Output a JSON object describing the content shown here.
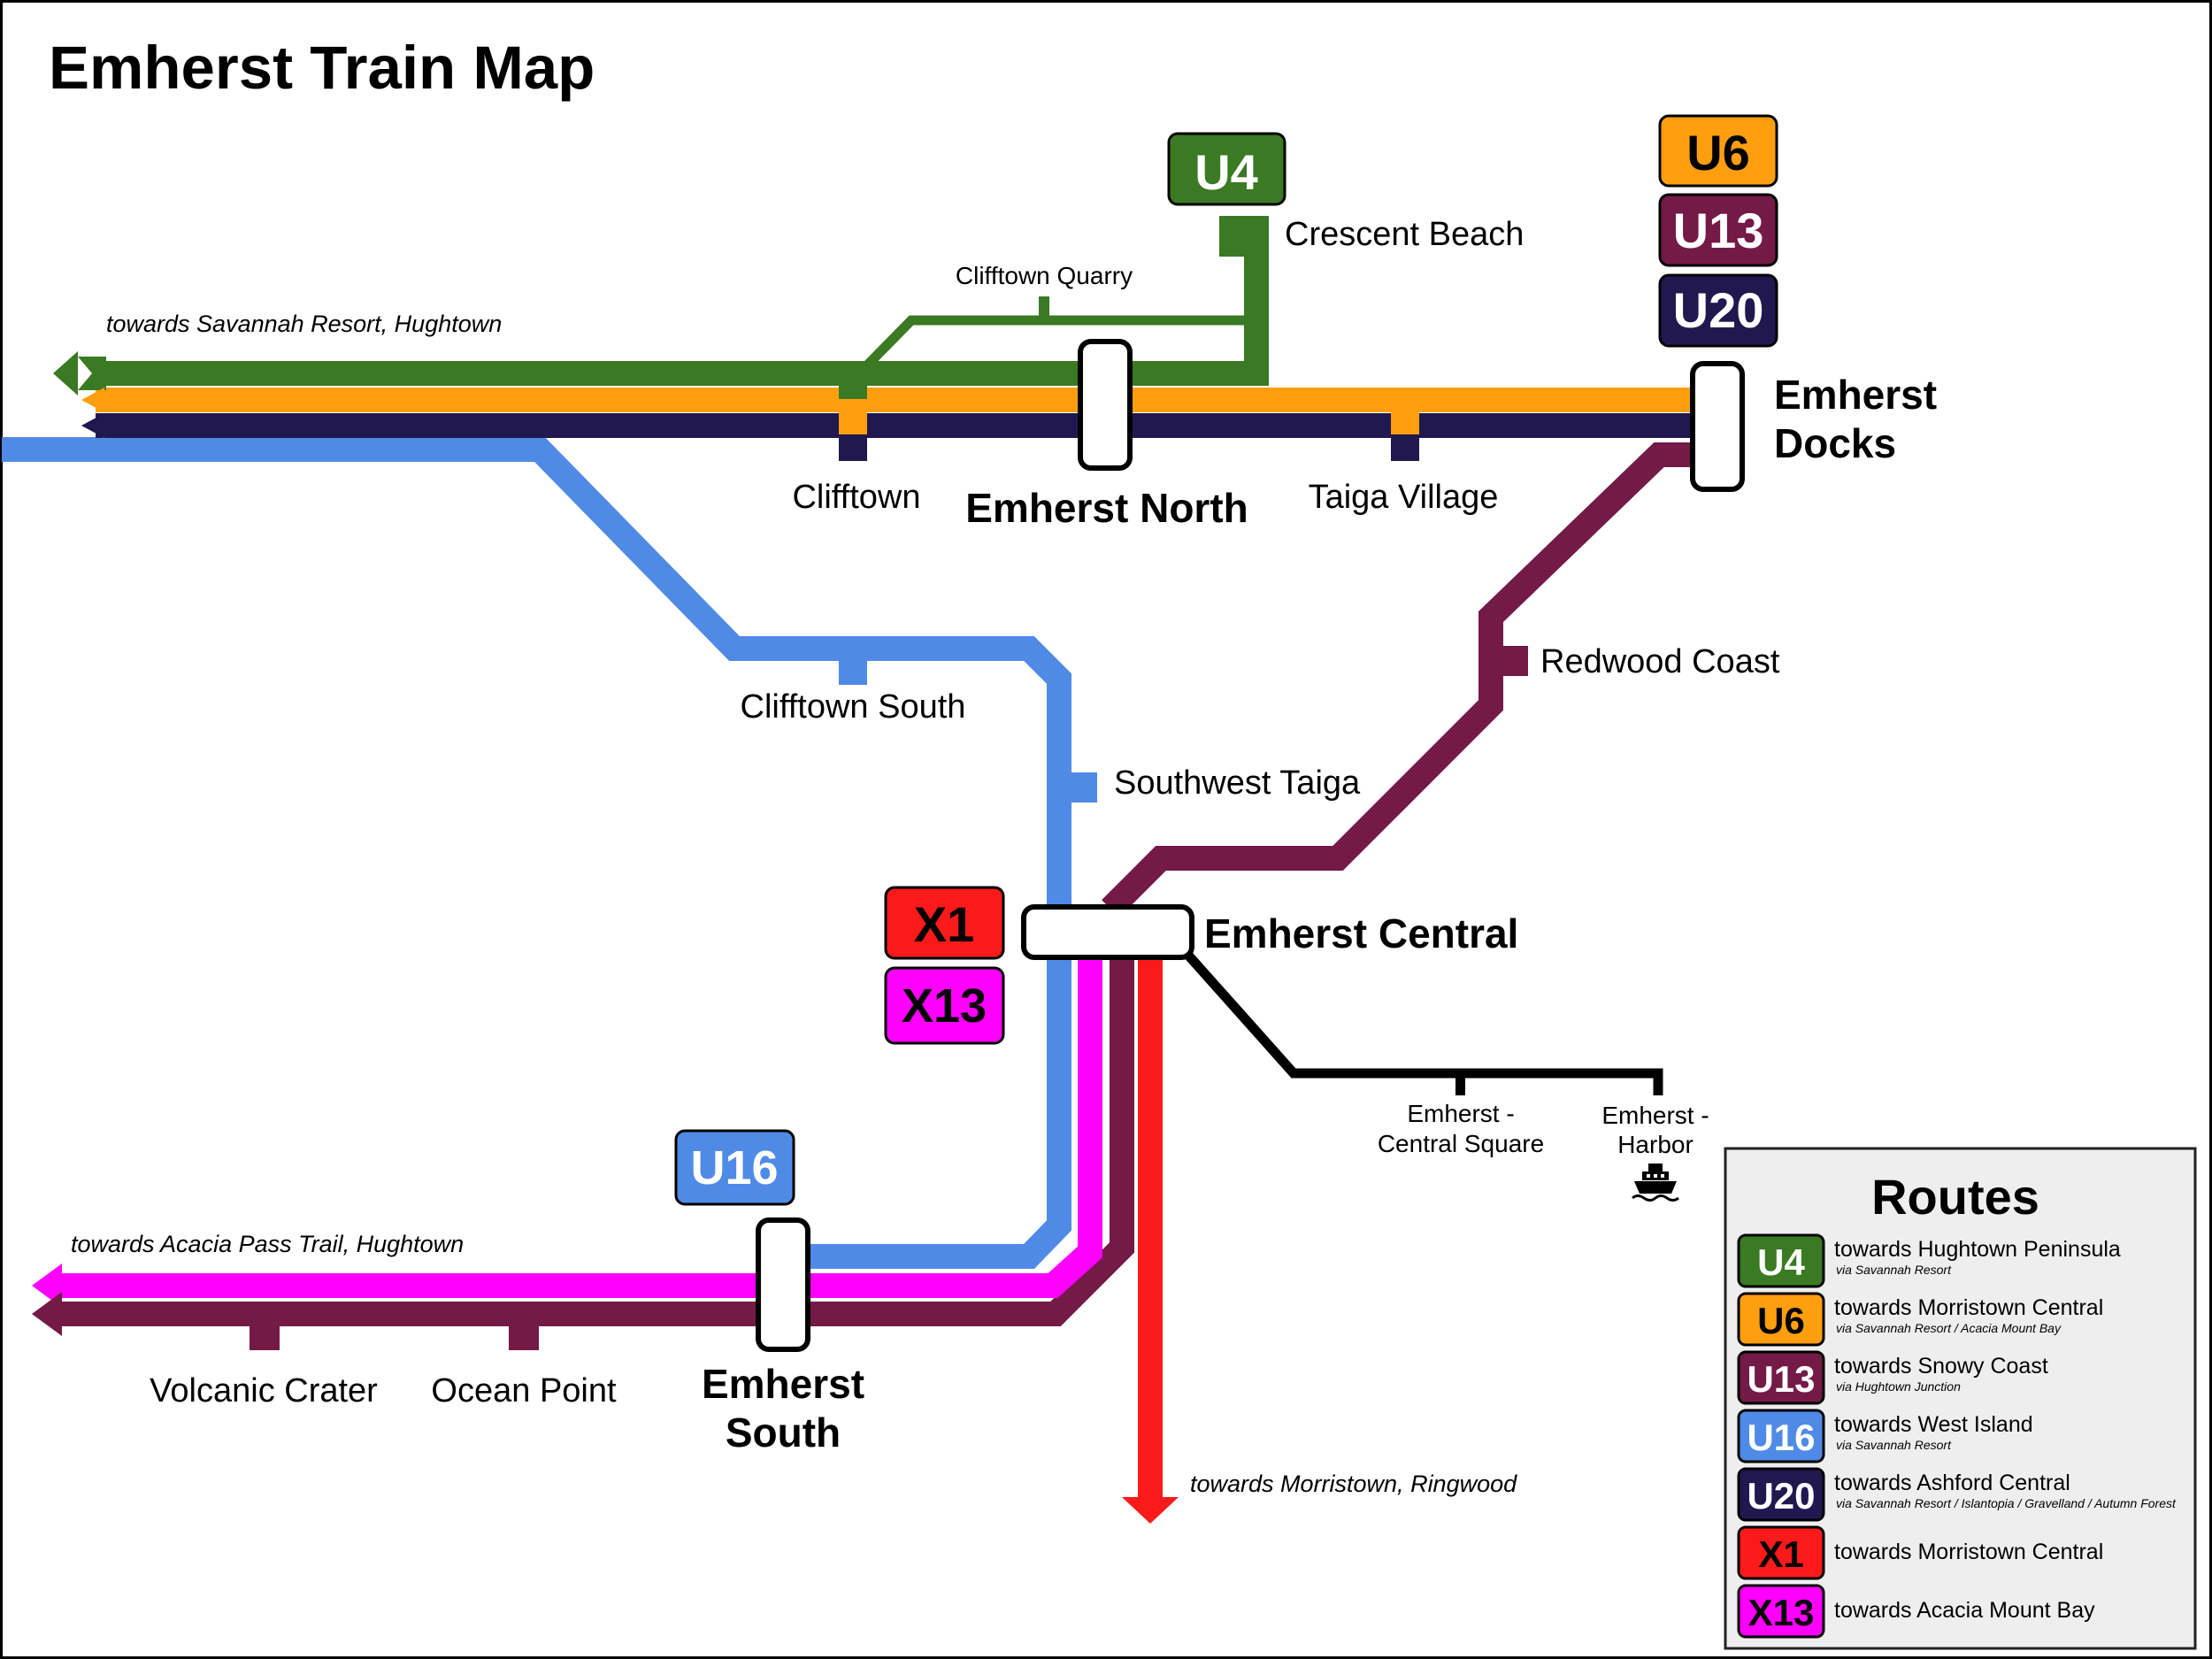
{
  "title": "Emherst Train Map",
  "colors": {
    "U4": "#3a7a22",
    "U6": "#ff9f0f",
    "U13": "#741a47",
    "U16": "#4f8be6",
    "U20": "#221850",
    "X1": "#fa1a1a",
    "X13": "#ff00ff",
    "link": "#000000"
  },
  "stations": {
    "crescent_beach": "Crescent Beach",
    "clifftown_quarry": "Clifftown Quarry",
    "clifftown": "Clifftown",
    "emherst_north": "Emherst North",
    "taiga_village": "Taiga Village",
    "emherst_docks_1": "Emherst",
    "emherst_docks_2": "Docks",
    "redwood_coast": "Redwood Coast",
    "clifftown_south": "Clifftown South",
    "southwest_taiga": "Southwest Taiga",
    "emherst_central": "Emherst Central",
    "central_square_1": "Emherst -",
    "central_square_2": "Central Square",
    "harbor_1": "Emherst -",
    "harbor_2": "Harbor",
    "volcanic_crater": "Volcanic Crater",
    "ocean_point": "Ocean Point",
    "emherst_south_1": "Emherst",
    "emherst_south_2": "South"
  },
  "directions": {
    "northwest": "towards Savannah Resort, Hughtown",
    "southwest": "towards Acacia Pass Trail, Hughtown",
    "south": "towards Morristown, Ringwood"
  },
  "badges": {
    "U4": "U4",
    "U6": "U6",
    "U13": "U13",
    "U20": "U20",
    "X1": "X1",
    "X13": "X13",
    "U16": "U16"
  },
  "icons": {
    "harbor": "ferry-icon"
  },
  "legend": {
    "title": "Routes",
    "routes": [
      {
        "id": "U4",
        "dest": "towards Hughtown Peninsula",
        "via": "via Savannah Resort"
      },
      {
        "id": "U6",
        "dest": "towards Morristown Central",
        "via": "via Savannah Resort / Acacia Mount Bay"
      },
      {
        "id": "U13",
        "dest": "towards Snowy Coast",
        "via": "via Hughtown Junction"
      },
      {
        "id": "U16",
        "dest": "towards West Island",
        "via": "via Savannah Resort"
      },
      {
        "id": "U20",
        "dest": "towards Ashford Central",
        "via": "via Savannah Resort / Islantopia / Gravelland / Autumn Forest"
      },
      {
        "id": "X1",
        "dest": "towards Morristown Central",
        "via": ""
      },
      {
        "id": "X13",
        "dest": "towards Acacia Mount Bay",
        "via": ""
      }
    ]
  }
}
